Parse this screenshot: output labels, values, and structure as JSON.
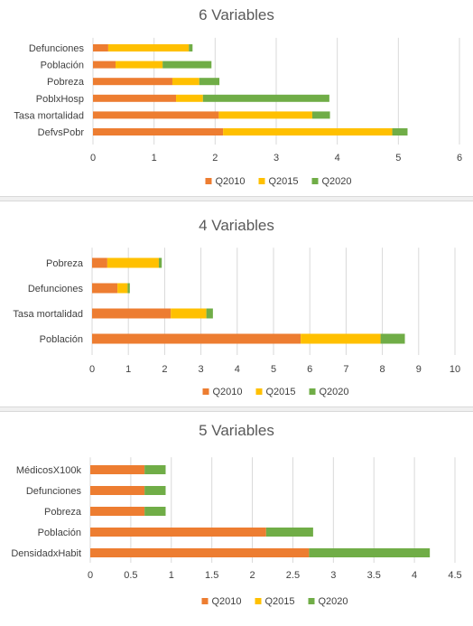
{
  "colors": {
    "Q2010": "#ED7D31",
    "Q2015": "#FFC000",
    "Q2020": "#70AD47",
    "grid": "#D9D9D9",
    "text": "#404040",
    "title": "#595959"
  },
  "chart_data": [
    {
      "type": "bar",
      "orientation": "horizontal",
      "stacked": true,
      "title": "6 Variables",
      "categories": [
        "Defunciones",
        "Población",
        "Pobreza",
        "PoblxHosp",
        "Tasa mortalidad",
        "DefvsPobr"
      ],
      "series": [
        {
          "name": "Q2010",
          "values": [
            0.25,
            0.37,
            1.3,
            1.36,
            2.06,
            2.13
          ]
        },
        {
          "name": "Q2015",
          "values": [
            1.32,
            0.77,
            0.44,
            0.44,
            1.53,
            2.77
          ]
        },
        {
          "name": "Q2020",
          "values": [
            0.06,
            0.8,
            0.33,
            2.07,
            0.29,
            0.25
          ]
        }
      ],
      "xlim": [
        0,
        6
      ],
      "xticks": [
        "0",
        "1",
        "2",
        "3",
        "4",
        "5",
        "6"
      ],
      "grid": true,
      "legend": "bottom"
    },
    {
      "type": "bar",
      "orientation": "horizontal",
      "stacked": true,
      "title": "4 Variables",
      "categories": [
        "Pobreza",
        "Defunciones",
        "Tasa mortalidad",
        "Población"
      ],
      "series": [
        {
          "name": "Q2010",
          "values": [
            0.42,
            0.7,
            2.17,
            5.75
          ]
        },
        {
          "name": "Q2015",
          "values": [
            1.42,
            0.28,
            0.98,
            2.2
          ]
        },
        {
          "name": "Q2020",
          "values": [
            0.08,
            0.06,
            0.18,
            0.67
          ]
        }
      ],
      "xlim": [
        0,
        10
      ],
      "xticks": [
        "0",
        "1",
        "2",
        "3",
        "4",
        "5",
        "6",
        "7",
        "8",
        "9",
        "10"
      ],
      "grid": true,
      "legend": "bottom"
    },
    {
      "type": "bar",
      "orientation": "horizontal",
      "stacked": true,
      "title": "5 Variables",
      "categories": [
        "MédicosX100k",
        "Defunciones",
        "Pobreza",
        "Población",
        "DensidadxHabit"
      ],
      "series": [
        {
          "name": "Q2010",
          "values": [
            0.67,
            0.67,
            0.67,
            2.17,
            2.7
          ]
        },
        {
          "name": "Q2015",
          "values": [
            0,
            0,
            0,
            0,
            0
          ]
        },
        {
          "name": "Q2020",
          "values": [
            0.26,
            0.26,
            0.26,
            0.58,
            1.49
          ]
        }
      ],
      "xlim": [
        0,
        4.5
      ],
      "xticks": [
        "0",
        "0.5",
        "1",
        "1.5",
        "2",
        "2.5",
        "3",
        "3.5",
        "4",
        "4.5"
      ],
      "grid": true,
      "legend": "bottom"
    }
  ]
}
